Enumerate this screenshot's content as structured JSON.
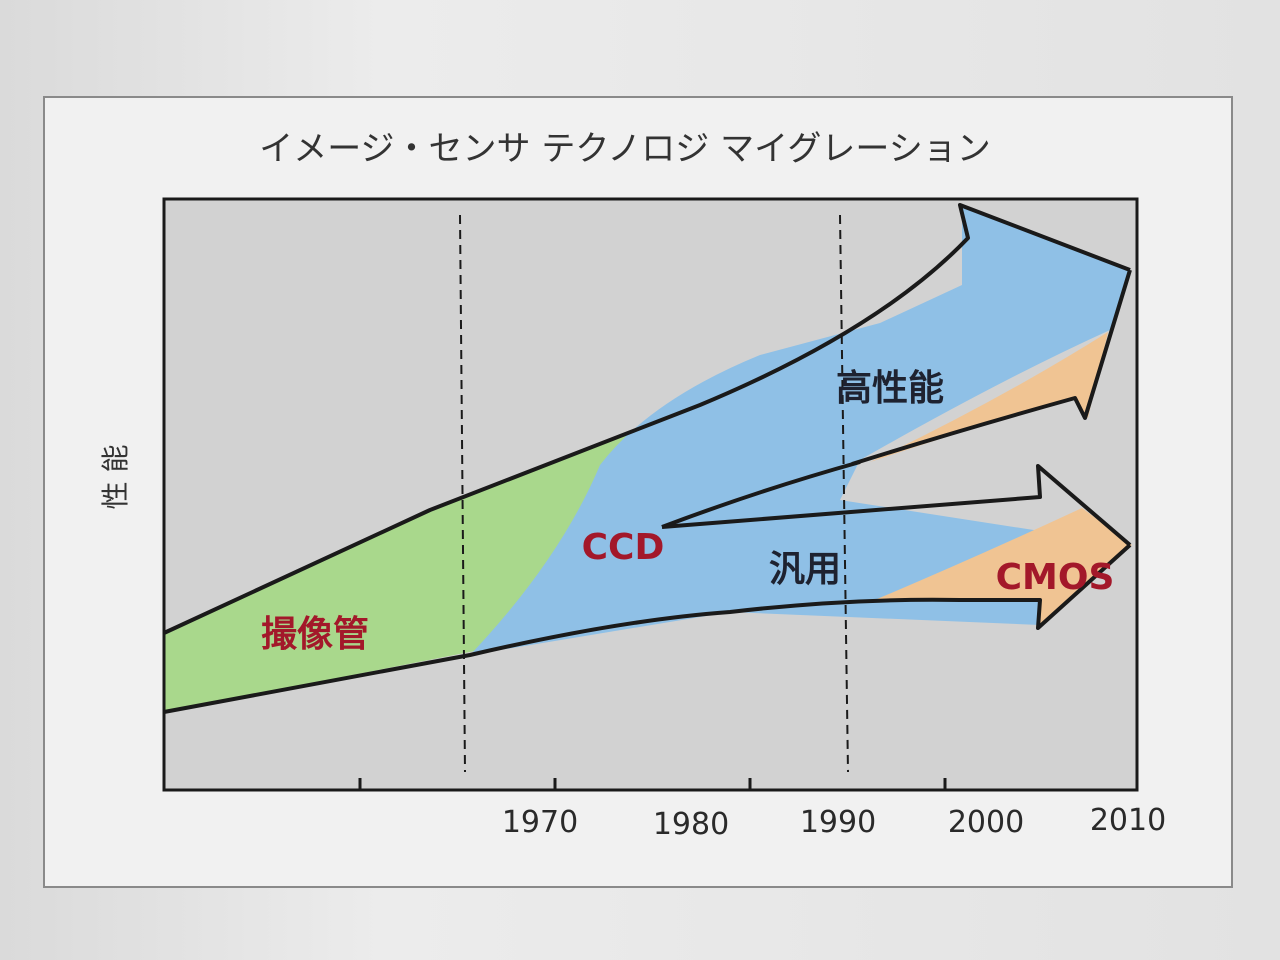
{
  "title": "イメージ・センサ テクノロジ マイグレーション",
  "ylabel": "性 能",
  "x_ticks": [
    "1970",
    "1980",
    "1990",
    "2000",
    "2010"
  ],
  "labels": {
    "tube": "撮像管",
    "ccd": "CCD",
    "high_performance": "高性能",
    "general": "汎用",
    "cmos": "CMOS"
  },
  "colors": {
    "tube": "#a9d88c",
    "ccd": "#8fc0e6",
    "cmos": "#f0c493",
    "plot_bg": "#d2d2d2",
    "arrow_outline": "#1a1a1a"
  }
}
